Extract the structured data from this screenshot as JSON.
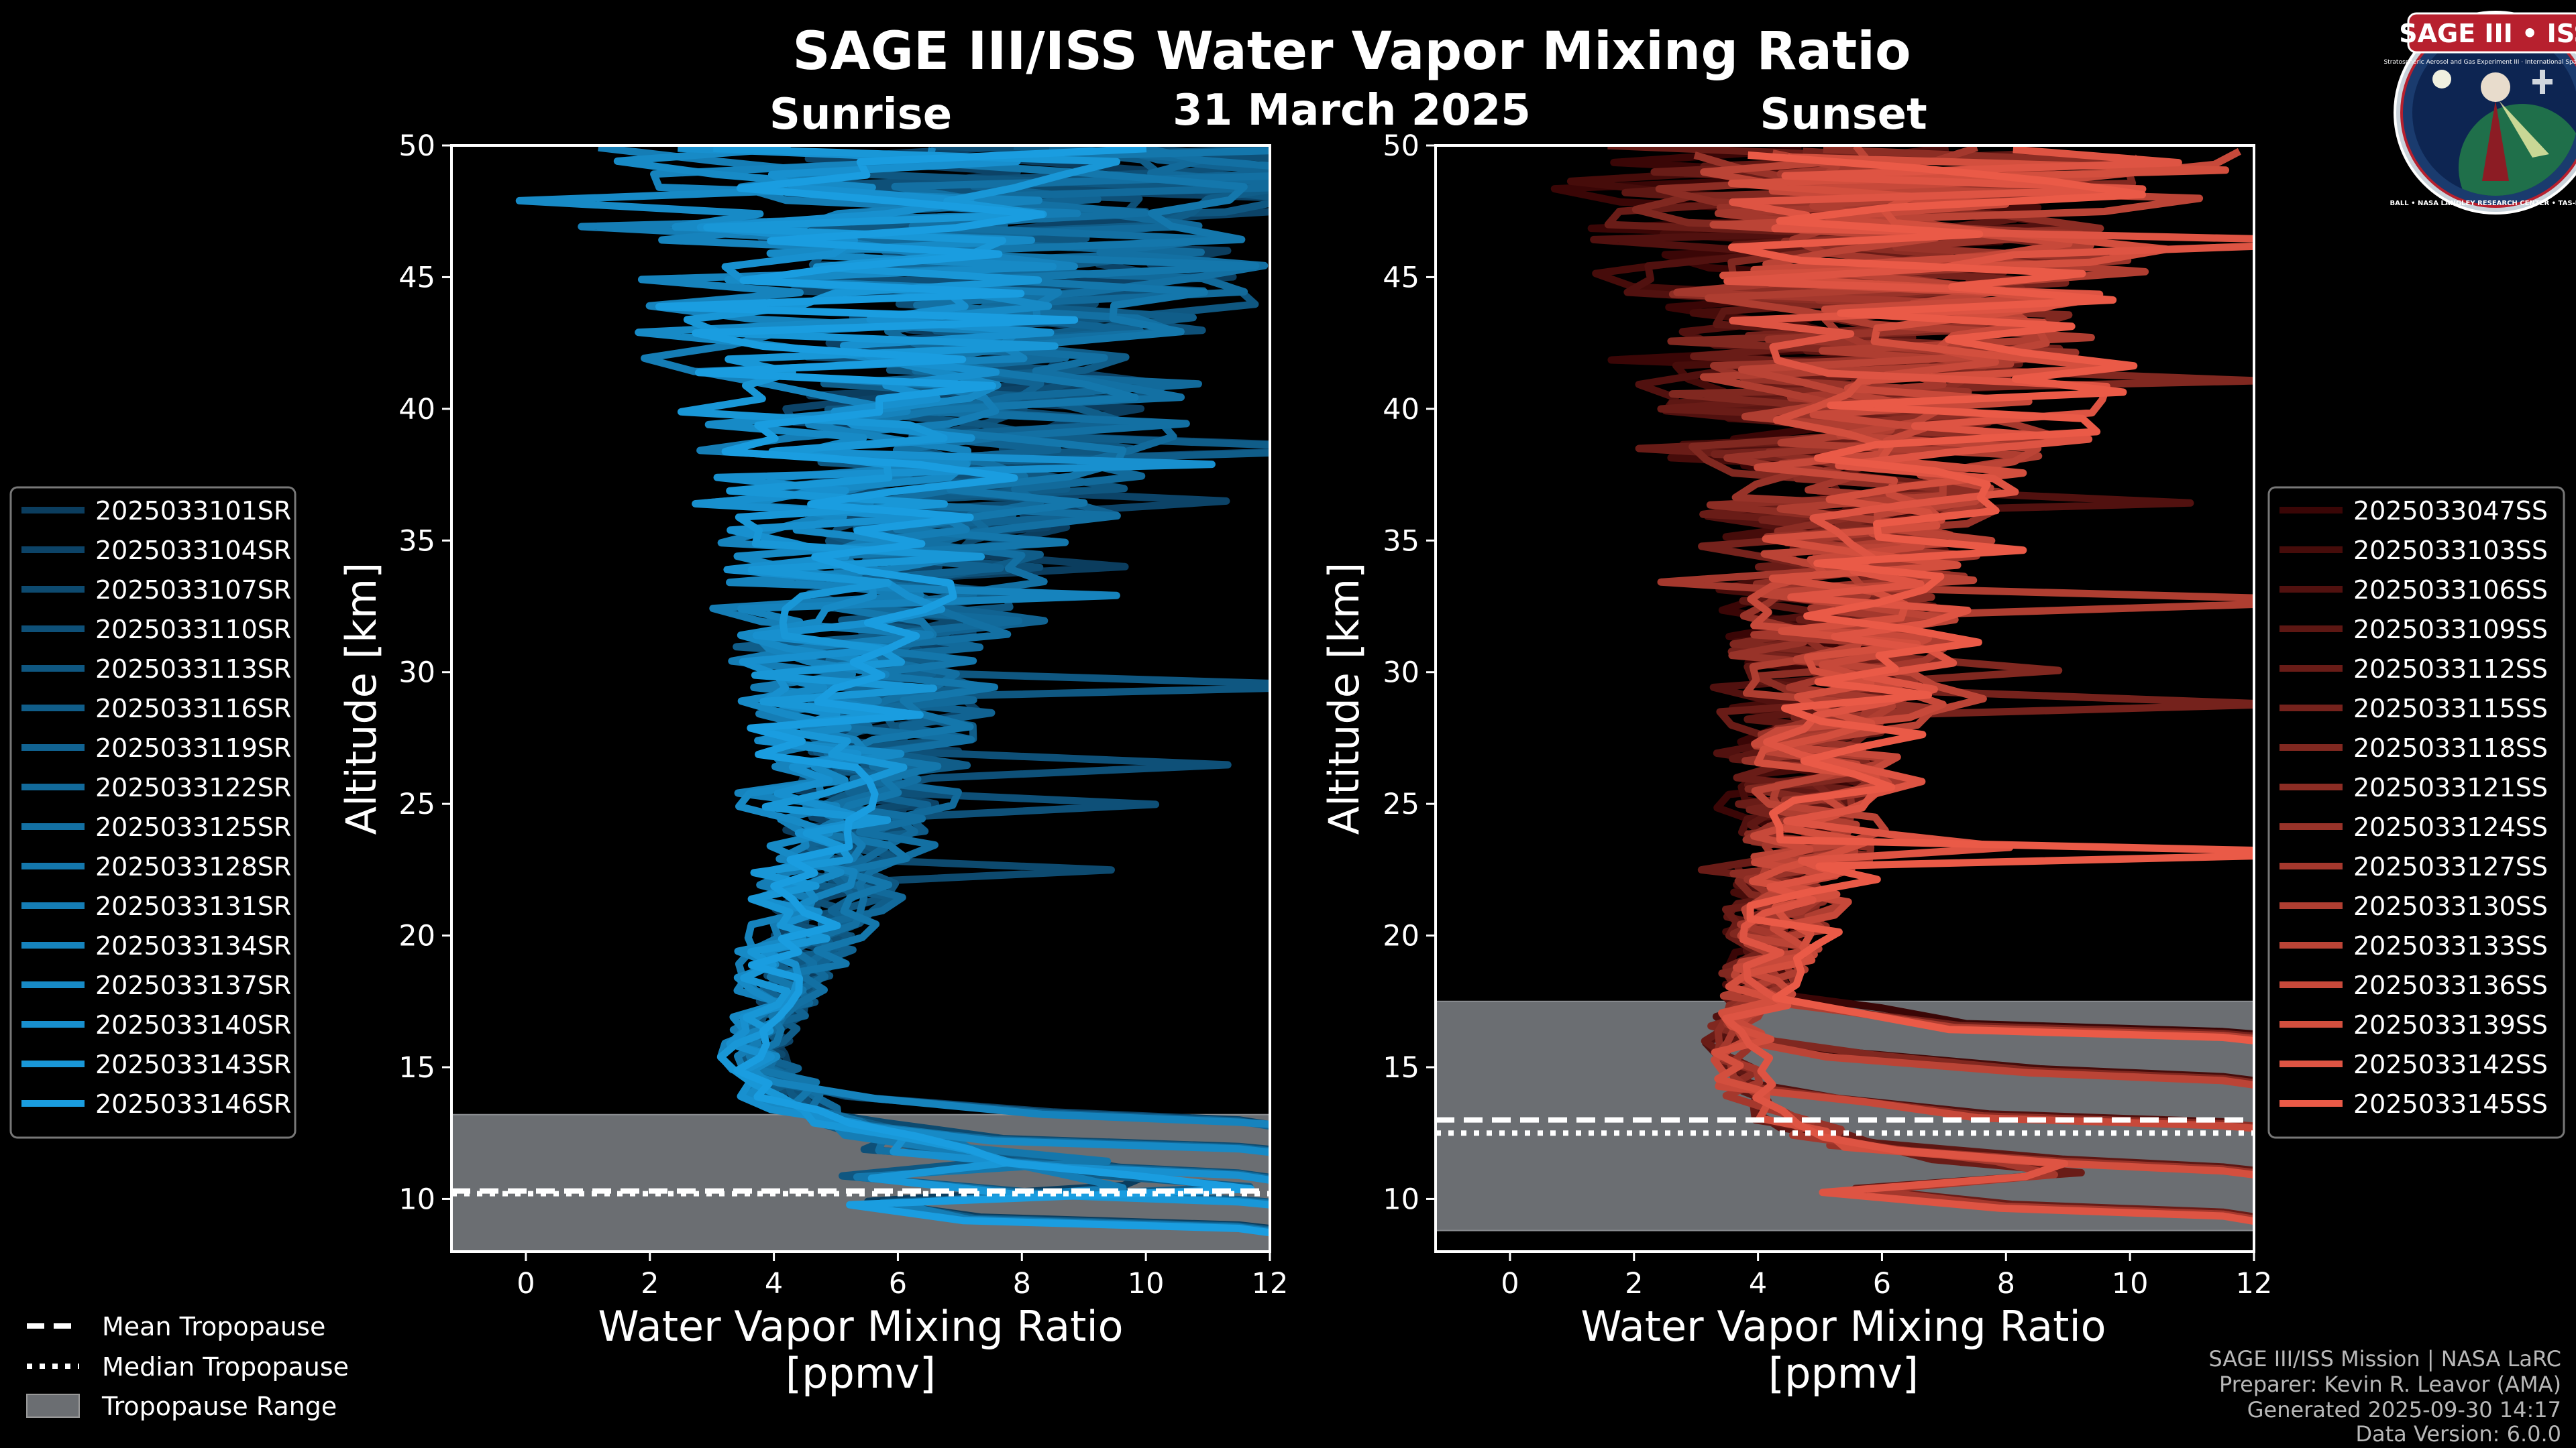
{
  "title": "SAGE III/ISS Water Vapor Mixing Ratio",
  "date": "31 March 2025",
  "logo": {
    "name": "SAGE III • ISS",
    "tagline": "Stratospheric Aerosol and Gas Experiment III · International Space Station",
    "ring_text": "BALL • NASA LANGLEY RESEARCH CENTER • TAS-I • ESA"
  },
  "footer": {
    "line1": "SAGE III/ISS Mission | NASA LaRC",
    "line2": "Preparer: Kevin R. Leavor (AMA)",
    "line3": "Generated 2025-09-30 14:17",
    "line4": "Data Version: 6.0.0"
  },
  "bottom_legend": {
    "mean": "Mean Tropopause",
    "median": "Median Tropopause",
    "range": "Tropopause Range"
  },
  "colors": {
    "sunrise_dark": "#0b3d5e",
    "sunrise_light": "#1a9de0",
    "sunset_dark": "#3a0606",
    "sunset_light": "#ea5a47",
    "tropo_range": "#6b6e72"
  },
  "chart_data": [
    {
      "type": "line",
      "panel": "Sunrise",
      "title": "Sunrise",
      "xlabel": "Water Vapor Mixing Ratio\n[ppmv]",
      "ylabel": "Altitude [km]",
      "xlim": [
        -1.2,
        12
      ],
      "ylim": [
        8,
        50
      ],
      "xticks": [
        0,
        2,
        4,
        6,
        8,
        10,
        12
      ],
      "yticks": [
        10,
        15,
        20,
        25,
        30,
        35,
        40,
        45,
        50
      ],
      "tropopause": {
        "mean_km": 10.3,
        "median_km": 10.2,
        "range_km": [
          8,
          13.2
        ]
      },
      "profile_shape": {
        "altitude_km": [
          9,
          11,
          12,
          13,
          14,
          15,
          16,
          17,
          18,
          19,
          20,
          22,
          24,
          26,
          28,
          30,
          32,
          34,
          36,
          38,
          40,
          42,
          44,
          46,
          48,
          49.5
        ],
        "median_ppmv": [
          14,
          9.5,
          6.5,
          4.8,
          4.1,
          3.8,
          3.8,
          3.9,
          4.1,
          4.3,
          4.5,
          4.9,
          5.1,
          5.3,
          5.5,
          5.7,
          5.8,
          6.0,
          6.2,
          6.4,
          6.6,
          6.8,
          7.0,
          7.2,
          7.4,
          7.5
        ],
        "spread_ppmv": [
          2,
          1.5,
          1.0,
          0.8,
          0.6,
          0.6,
          0.6,
          0.6,
          0.7,
          0.8,
          0.9,
          1.2,
          1.4,
          1.6,
          1.8,
          2.0,
          2.3,
          2.6,
          3.0,
          3.4,
          3.8,
          4.2,
          4.6,
          5.0,
          5.4,
          5.6
        ]
      },
      "series": [
        {
          "name": "2025033101SR"
        },
        {
          "name": "2025033104SR"
        },
        {
          "name": "2025033107SR"
        },
        {
          "name": "2025033110SR"
        },
        {
          "name": "2025033113SR"
        },
        {
          "name": "2025033116SR"
        },
        {
          "name": "2025033119SR"
        },
        {
          "name": "2025033122SR"
        },
        {
          "name": "2025033125SR"
        },
        {
          "name": "2025033128SR"
        },
        {
          "name": "2025033131SR"
        },
        {
          "name": "2025033134SR"
        },
        {
          "name": "2025033137SR"
        },
        {
          "name": "2025033140SR"
        },
        {
          "name": "2025033143SR"
        },
        {
          "name": "2025033146SR"
        }
      ]
    },
    {
      "type": "line",
      "panel": "Sunset",
      "title": "Sunset",
      "xlabel": "Water Vapor Mixing Ratio\n[ppmv]",
      "ylabel": "Altitude [km]",
      "xlim": [
        -1.2,
        12
      ],
      "ylim": [
        8,
        50
      ],
      "xticks": [
        0,
        2,
        4,
        6,
        8,
        10,
        12
      ],
      "yticks": [
        10,
        15,
        20,
        25,
        30,
        35,
        40,
        45,
        50
      ],
      "tropopause": {
        "mean_km": 13.0,
        "median_km": 12.5,
        "range_km": [
          8.8,
          17.5
        ]
      },
      "profile_shape": {
        "altitude_km": [
          9,
          10.5,
          11.5,
          12.5,
          13.5,
          14.5,
          15.5,
          16.5,
          17.5,
          18.5,
          20,
          22,
          24,
          26,
          28,
          30,
          32,
          34,
          36,
          38,
          40,
          42,
          44,
          46,
          48,
          49.5
        ],
        "median_ppmv": [
          12,
          10,
          7.5,
          5.0,
          4.0,
          3.7,
          3.7,
          3.8,
          4.0,
          4.2,
          4.5,
          4.9,
          5.1,
          5.3,
          5.5,
          5.6,
          5.8,
          6.0,
          6.2,
          6.4,
          6.6,
          6.8,
          7.0,
          7.2,
          7.4,
          7.5
        ],
        "spread_ppmv": [
          2,
          1.8,
          1.2,
          0.8,
          0.6,
          0.6,
          0.6,
          0.6,
          0.7,
          0.8,
          1.0,
          1.3,
          1.5,
          1.7,
          1.9,
          2.1,
          2.4,
          2.7,
          3.0,
          3.4,
          3.8,
          4.2,
          4.6,
          5.0,
          5.4,
          5.6
        ]
      },
      "series": [
        {
          "name": "2025033047SS"
        },
        {
          "name": "2025033103SS"
        },
        {
          "name": "2025033106SS"
        },
        {
          "name": "2025033109SS"
        },
        {
          "name": "2025033112SS"
        },
        {
          "name": "2025033115SS"
        },
        {
          "name": "2025033118SS"
        },
        {
          "name": "2025033121SS"
        },
        {
          "name": "2025033124SS"
        },
        {
          "name": "2025033127SS"
        },
        {
          "name": "2025033130SS"
        },
        {
          "name": "2025033133SS"
        },
        {
          "name": "2025033136SS"
        },
        {
          "name": "2025033139SS"
        },
        {
          "name": "2025033142SS"
        },
        {
          "name": "2025033145SS"
        }
      ]
    }
  ]
}
